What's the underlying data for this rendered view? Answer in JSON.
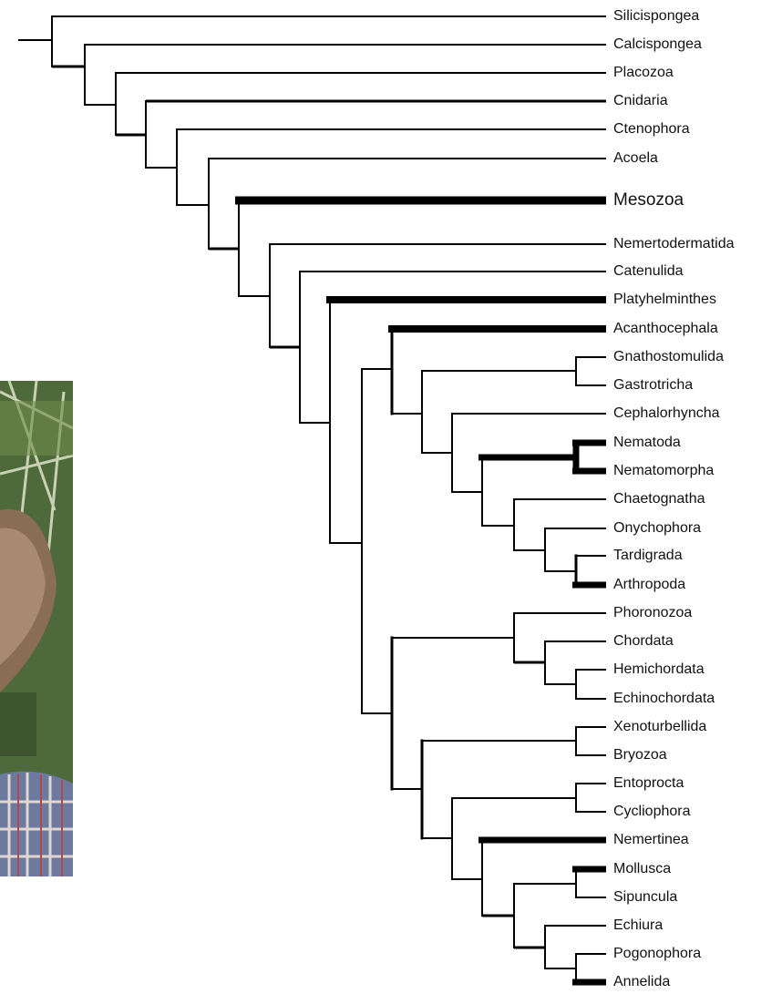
{
  "tree": {
    "leaves": [
      {
        "label": "Silicispongea"
      },
      {
        "label": "Calcispongea"
      },
      {
        "label": "Placozoa"
      },
      {
        "label": "Cnidaria"
      },
      {
        "label": "Ctenophora"
      },
      {
        "label": "Acoela"
      },
      {
        "label": "Mesozoa"
      },
      {
        "label": "Nemertodermatida"
      },
      {
        "label": "Catenulida"
      },
      {
        "label": "Platyhelminthes"
      },
      {
        "label": "Acanthocephala"
      },
      {
        "label": "Gnathostomulida"
      },
      {
        "label": "Gastrotricha"
      },
      {
        "label": "Cephalorhyncha"
      },
      {
        "label": "Nematoda"
      },
      {
        "label": "Nematomorpha"
      },
      {
        "label": "Chaetognatha"
      },
      {
        "label": "Onychophora"
      },
      {
        "label": "Tardigrada"
      },
      {
        "label": "Arthropoda"
      },
      {
        "label": "Phoronozoa"
      },
      {
        "label": "Chordata"
      },
      {
        "label": "Hemichordata"
      },
      {
        "label": "Echinochordata"
      },
      {
        "label": "Xenoturbellida"
      },
      {
        "label": "Bryozoa"
      },
      {
        "label": "Entoprocta"
      },
      {
        "label": "Cycliophora"
      },
      {
        "label": "Nemertinea"
      },
      {
        "label": "Mollusca"
      },
      {
        "label": "Sipuncula"
      },
      {
        "label": "Echiura"
      },
      {
        "label": "Pogonophora"
      },
      {
        "label": "Annelida"
      }
    ]
  }
}
